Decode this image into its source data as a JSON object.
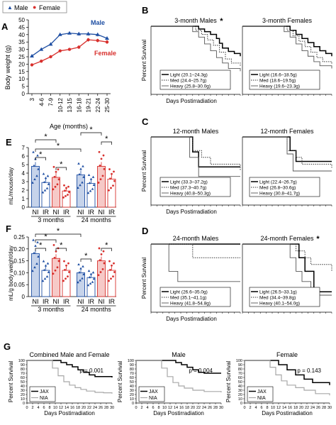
{
  "colors": {
    "male": "#1f4fa3",
    "female": "#d8302d",
    "light": "#000000",
    "heavy": "#555555",
    "nia": "#a8a8a8"
  },
  "chart_data": [
    {
      "panel": "A",
      "type": "line",
      "legend": [
        "Male",
        "Female"
      ],
      "legend_placement": "top-left",
      "categories": [
        "3",
        "4-6",
        "7-9",
        "10-12",
        "13-15",
        "16-18",
        "19-21",
        "22-24",
        "25-30"
      ],
      "series": [
        {
          "name": "Male",
          "values": [
            25.5,
            30,
            33.5,
            40,
            41,
            40.5,
            40.5,
            40,
            37.5
          ]
        },
        {
          "name": "Female",
          "values": [
            19.5,
            22,
            25,
            29,
            30,
            31.5,
            36.5,
            36,
            35
          ]
        }
      ],
      "xlabel": "Age (months)",
      "ylabel": "Body weight (g)",
      "ylim": [
        0,
        50
      ],
      "yticks": [
        "0",
        "5",
        "10",
        "15",
        "20",
        "25",
        "30",
        "35",
        "40",
        "45",
        "50"
      ]
    },
    {
      "panel": "B",
      "type": "line",
      "subplots": [
        {
          "title": "3-month Males",
          "star": true,
          "legend": [
            "Light (20.1–24.3g)",
            "Med (24.4–25.7g)",
            "Heavy (25.8–30.0g)"
          ],
          "series": [
            {
              "name": "Light",
              "x": [
                0,
                14,
                16,
                18,
                20,
                22,
                23,
                24,
                26,
                28,
                30
              ],
              "y": [
                100,
                100,
                96,
                92,
                88,
                82,
                75,
                68,
                63,
                60,
                56
              ]
            },
            {
              "name": "Med",
              "x": [
                0,
                13,
                15,
                17,
                19,
                21,
                23,
                25,
                27,
                30
              ],
              "y": [
                100,
                100,
                94,
                88,
                80,
                72,
                62,
                52,
                46,
                42
              ]
            },
            {
              "name": "Heavy",
              "x": [
                0,
                12,
                14,
                16,
                18,
                20,
                22,
                24,
                26,
                30
              ],
              "y": [
                100,
                100,
                92,
                84,
                74,
                64,
                54,
                46,
                38,
                34
              ]
            }
          ]
        },
        {
          "title": "3-month Females",
          "star": false,
          "legend": [
            "Light (16.6–18.5g)",
            "Med (18.6–19.5g)",
            "Heavy (19.6–23.3g)"
          ],
          "series": [
            {
              "name": "Light",
              "x": [
                0,
                14,
                16,
                18,
                20,
                22,
                24,
                26,
                28,
                30
              ],
              "y": [
                100,
                100,
                94,
                88,
                82,
                76,
                70,
                64,
                60,
                56
              ]
            },
            {
              "name": "Med",
              "x": [
                0,
                13,
                15,
                17,
                19,
                21,
                23,
                25,
                27,
                30
              ],
              "y": [
                100,
                100,
                94,
                86,
                78,
                70,
                62,
                54,
                48,
                44
              ]
            },
            {
              "name": "Heavy",
              "x": [
                0,
                12,
                14,
                16,
                18,
                20,
                22,
                24,
                26,
                30
              ],
              "y": [
                100,
                100,
                92,
                84,
                74,
                64,
                56,
                48,
                42,
                38
              ]
            }
          ]
        }
      ],
      "xlabel": "Days Postirradiation",
      "ylabel": "Percent Survival",
      "xlim": [
        0,
        30
      ],
      "ylim": [
        0,
        100
      ]
    },
    {
      "panel": "C",
      "type": "line",
      "subplots": [
        {
          "title": "12-month Males",
          "star": false,
          "legend": [
            "Light (33.3–37.2g)",
            "Med (37.3–40.7g)",
            "Heavy (40.8–50.3g)"
          ],
          "series": [
            {
              "name": "Light",
              "x": [
                0,
                12,
                14,
                16,
                30
              ],
              "y": [
                100,
                100,
                78,
                56,
                56
              ]
            },
            {
              "name": "Med",
              "x": [
                0,
                12,
                14,
                17,
                20,
                30
              ],
              "y": [
                100,
                100,
                80,
                70,
                60,
                50
              ]
            },
            {
              "name": "Heavy",
              "x": [
                0,
                11,
                13,
                16,
                30
              ],
              "y": [
                100,
                100,
                70,
                42,
                42
              ]
            }
          ]
        },
        {
          "title": "12-month Females",
          "star": false,
          "legend": [
            "Light (22.4–26.7g)",
            "Med (26.8–30.6g)",
            "Heavy (30.8–41.7g)"
          ],
          "series": [
            {
              "name": "Light",
              "x": [
                0,
                14,
                16,
                18,
                30
              ],
              "y": [
                100,
                100,
                80,
                64,
                64
              ]
            },
            {
              "name": "Med",
              "x": [
                0,
                13,
                15,
                18,
                20,
                30
              ],
              "y": [
                100,
                100,
                80,
                70,
                60,
                55
              ]
            },
            {
              "name": "Heavy",
              "x": [
                0,
                13,
                15,
                17,
                30
              ],
              "y": [
                100,
                100,
                75,
                50,
                50
              ]
            }
          ]
        }
      ],
      "xlabel": "Days Postirradiation",
      "ylabel": "Percent Survival",
      "xlim": [
        0,
        30
      ],
      "ylim": [
        0,
        100
      ]
    },
    {
      "panel": "D",
      "type": "line",
      "subplots": [
        {
          "title": "24-month Males",
          "star": false,
          "legend": [
            "Light (26.6–35.0g)",
            "Med (35.1–41.1g)",
            "Heavy (41.8–54.8g)"
          ],
          "series": [
            {
              "name": "Light",
              "x": [
                0,
                14,
                30
              ],
              "y": [
                100,
                100,
                100
              ]
            },
            {
              "name": "Med",
              "x": [
                0,
                10,
                14,
                30
              ],
              "y": [
                100,
                100,
                80,
                80
              ]
            },
            {
              "name": "Heavy",
              "x": [
                0,
                4,
                6,
                9,
                30
              ],
              "y": [
                100,
                100,
                60,
                45,
                45
              ]
            }
          ]
        },
        {
          "title": "24-month Females",
          "star": true,
          "legend": [
            "Light (26.5–33.1g)",
            "Med (34.4–39.8g)",
            "Heavy (40.1–54.0g)"
          ],
          "series": [
            {
              "name": "Light",
              "x": [
                0,
                17,
                19,
                21,
                24,
                30
              ],
              "y": [
                100,
                100,
                80,
                60,
                30,
                30
              ]
            },
            {
              "name": "Med",
              "x": [
                0,
                15,
                18,
                21,
                23,
                29,
                30
              ],
              "y": [
                100,
                100,
                90,
                80,
                70,
                70,
                60
              ]
            },
            {
              "name": "Heavy",
              "x": [
                0,
                14,
                16,
                18,
                20,
                23,
                30
              ],
              "y": [
                100,
                100,
                80,
                60,
                45,
                25,
                25
              ]
            }
          ]
        }
      ],
      "xlabel": "Days Postirradiation",
      "ylabel": "Percent Survival",
      "xlim": [
        0,
        30
      ],
      "ylim": [
        0,
        100
      ]
    },
    {
      "panel": "E",
      "type": "bar",
      "categories": [
        "NI",
        "IR",
        "NI",
        "IR",
        "NI",
        "IR",
        "NI",
        "IR"
      ],
      "groups": [
        "3 months",
        "24 months"
      ],
      "series": [
        {
          "name": "Male",
          "values": [
            4.8,
            2.9,
            null,
            null,
            3.8,
            2.8,
            null,
            null
          ]
        },
        {
          "name": "Female",
          "values": [
            null,
            null,
            3.5,
            1.9,
            null,
            null,
            4.8,
            3.3
          ]
        }
      ],
      "ylabel": "mL/mouse/day",
      "ylim": [
        0,
        7
      ],
      "yticks": [
        "0",
        "1",
        "2",
        "3",
        "4",
        "5",
        "6",
        "7"
      ]
    },
    {
      "panel": "F",
      "type": "bar",
      "categories": [
        "NI",
        "IR",
        "NI",
        "IR",
        "NI",
        "IR",
        "NI",
        "IR"
      ],
      "groups": [
        "3 months",
        "24 months"
      ],
      "series": [
        {
          "name": "Male",
          "values": [
            0.18,
            0.11,
            null,
            null,
            0.1,
            0.08,
            null,
            null
          ]
        },
        {
          "name": "Female",
          "values": [
            null,
            null,
            0.16,
            0.11,
            null,
            null,
            0.15,
            0.11
          ]
        }
      ],
      "ylabel": "mL/g body weight/day",
      "ylim": [
        0,
        0.25
      ],
      "yticks": [
        "0",
        "0.05",
        "0.10",
        "0.15",
        "0.20",
        "0.25"
      ]
    },
    {
      "panel": "G",
      "type": "line",
      "subplots": [
        {
          "title": "Combined Male and Female",
          "pvalue": "p = 0.001",
          "legend": [
            "JAX",
            "NIA"
          ],
          "series": [
            {
              "name": "JAX",
              "x": [
                0,
                10,
                12,
                14,
                16,
                18,
                20,
                22,
                24,
                30
              ],
              "y": [
                100,
                100,
                95,
                90,
                85,
                78,
                72,
                66,
                62,
                60
              ]
            },
            {
              "name": "NIA",
              "x": [
                0,
                7,
                9,
                11,
                13,
                15,
                17,
                19,
                21,
                24,
                27,
                30
              ],
              "y": [
                100,
                100,
                82,
                64,
                50,
                42,
                36,
                32,
                28,
                25,
                24,
                22
              ]
            }
          ]
        },
        {
          "title": "Male",
          "pvalue": "p = 0.004",
          "legend": [
            "JAX",
            "NIA"
          ],
          "series": [
            {
              "name": "JAX",
              "x": [
                0,
                12,
                14,
                16,
                18,
                20,
                22,
                24,
                30
              ],
              "y": [
                100,
                100,
                95,
                90,
                84,
                78,
                72,
                70,
                70
              ]
            },
            {
              "name": "NIA",
              "x": [
                0,
                7,
                9,
                11,
                13,
                15,
                17,
                20,
                24,
                30
              ],
              "y": [
                100,
                100,
                82,
                62,
                48,
                40,
                35,
                30,
                27,
                25
              ]
            }
          ]
        },
        {
          "title": "Female",
          "pvalue": "p = 0.143",
          "legend": [
            "JAX",
            "NIA"
          ],
          "series": [
            {
              "name": "JAX",
              "x": [
                0,
                10,
                12,
                15,
                18,
                21,
                24,
                30
              ],
              "y": [
                100,
                100,
                90,
                78,
                66,
                56,
                48,
                42
              ]
            },
            {
              "name": "NIA",
              "x": [
                0,
                7,
                9,
                11,
                13,
                15,
                18,
                21,
                25,
                30
              ],
              "y": [
                100,
                100,
                84,
                66,
                52,
                42,
                36,
                30,
                22,
                18
              ]
            }
          ]
        }
      ],
      "xlabel": "Days Postirradiation",
      "ylabel": "Percent Survival",
      "xlim": [
        0,
        30
      ],
      "ylim": [
        0,
        100
      ]
    }
  ],
  "labels": {
    "panel_a": "A",
    "panel_b": "B",
    "panel_c": "C",
    "panel_d": "D",
    "panel_e": "E",
    "panel_f": "F",
    "panel_g": "G",
    "legend_male": "Male",
    "legend_female": "Female",
    "a_male_tag": "Male",
    "a_female_tag": "Female",
    "a_ylabel": "Body weight (g)",
    "a_xlabel": "Age (months)",
    "km_ylabel": "Percent Survival",
    "km_xlabel": "Days Postirradiation",
    "e_ylabel": "mL/mouse/day",
    "f_ylabel": "mL/g body weight/day",
    "group_3m": "3 months",
    "group_24m": "24 months",
    "ni": "NI",
    "ir": "IR",
    "star": "*"
  }
}
